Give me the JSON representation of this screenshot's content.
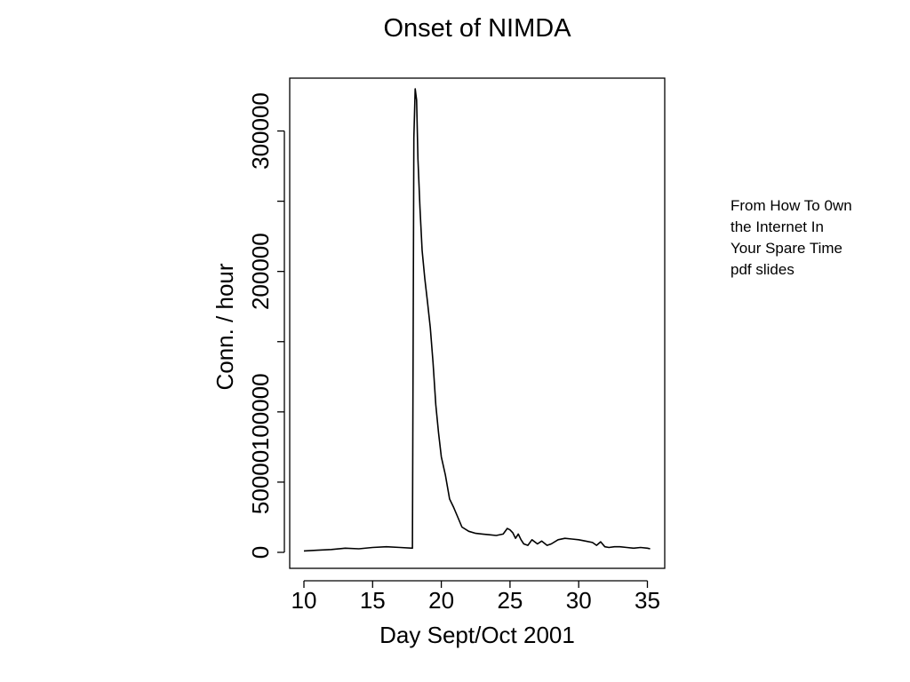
{
  "slide": {
    "source_note": "From How To 0wn\nthe Internet In\nYour Spare Time\npdf slides"
  },
  "chart_data": {
    "type": "line",
    "title": "Onset of NIMDA",
    "xlabel": "Day Sept/Oct 2001",
    "ylabel": "Conn. / hour",
    "xlim": [
      10,
      35.5
    ],
    "ylim": [
      0,
      330000
    ],
    "x_ticks": [
      10,
      15,
      20,
      25,
      30,
      35
    ],
    "x_tick_labels": [
      "10",
      "15",
      "20",
      "25",
      "30",
      "35"
    ],
    "y_ticks": [
      0,
      50000,
      100000,
      150000,
      200000,
      250000,
      300000
    ],
    "y_tick_labels": [
      "0",
      "50000",
      "100000",
      "",
      "200000",
      "",
      "300000"
    ],
    "grid": false,
    "line_color": "#000000",
    "series": [
      {
        "x": [
          10,
          11,
          12,
          13,
          14,
          15,
          16,
          17,
          17.9,
          18.0,
          18.1,
          18.2,
          18.3,
          18.45,
          18.6,
          18.8,
          19.0,
          19.2,
          19.4,
          19.6,
          19.8,
          20.0,
          20.3,
          20.6,
          20.9,
          21.2,
          21.5,
          22.0,
          22.5,
          23.0,
          23.5,
          24.0,
          24.5,
          24.8,
          25.0,
          25.2,
          25.4,
          25.6,
          25.8,
          26.0,
          26.3,
          26.6,
          27.0,
          27.3,
          27.7,
          28.0,
          28.5,
          29.0,
          29.5,
          30.0,
          30.5,
          31.0,
          31.3,
          31.6,
          31.9,
          32.2,
          32.6,
          33.0,
          33.5,
          34.0,
          34.5,
          35.0,
          35.2
        ],
        "values": [
          1000,
          1500,
          2000,
          3000,
          2500,
          3500,
          4000,
          3500,
          3000,
          295000,
          330000,
          322000,
          280000,
          245000,
          215000,
          195000,
          178000,
          160000,
          135000,
          105000,
          85000,
          68000,
          55000,
          38000,
          32000,
          25000,
          18000,
          15000,
          13500,
          13000,
          12500,
          12000,
          13000,
          17000,
          16000,
          14000,
          10000,
          13000,
          9000,
          6000,
          5000,
          9000,
          6000,
          8000,
          5000,
          6000,
          9000,
          10000,
          9500,
          9000,
          8000,
          7000,
          5000,
          7500,
          4000,
          3500,
          4000,
          4000,
          3500,
          3000,
          3500,
          3000,
          2500
        ]
      }
    ]
  }
}
